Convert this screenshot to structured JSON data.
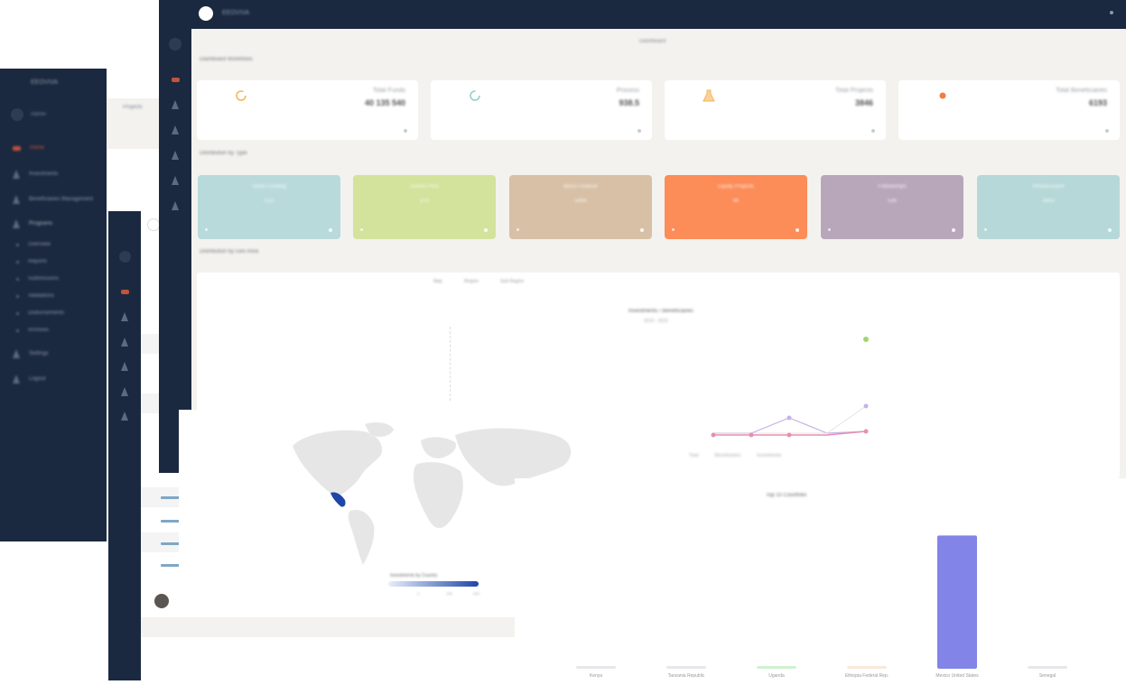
{
  "main": {
    "app_title": "EEOVIVA",
    "page_title": "Dashboard",
    "section_label": "Dashboard Workflows",
    "stats": [
      {
        "label": "Total Funds",
        "value": "40 135 540",
        "color": "#f5b35a"
      },
      {
        "label": "Process",
        "value": "938.5",
        "color": "#8ed0c5"
      },
      {
        "label": "Total Projects",
        "value": "3846",
        "color": "#f5b35a"
      },
      {
        "label": "Total Beneficiaries",
        "value": "6193",
        "color": "#f07d44"
      }
    ],
    "type_section_label": "Distribution by Type",
    "types": [
      {
        "label": "Seed Funding",
        "value": "1111",
        "color": "#b9dadb"
      },
      {
        "label": "Grants Plus",
        "value": "878",
        "color": "#d3e39c"
      },
      {
        "label": "Micro Finance",
        "value": "5494",
        "color": "#d7c0a6"
      },
      {
        "label": "Equity Projects",
        "value": "96",
        "color": "#fc8c58"
      },
      {
        "label": "Fellowships",
        "value": "536",
        "color": "#b8a7ba"
      },
      {
        "label": "Infrastructure",
        "value": "3663",
        "color": "#b6d8d8"
      }
    ],
    "geo_section_label": "Distribution by Geo Area",
    "chart_tabs": [
      "Map",
      "Region",
      "Sub Region"
    ]
  },
  "back_window": {
    "app_title": "EEOVIVA",
    "user_label": "Admin",
    "breadcrumb": "Projects",
    "sidebar_items": [
      {
        "label": "Home",
        "type": "icon"
      },
      {
        "label": "Investments",
        "type": "icon"
      },
      {
        "label": "Beneficiaries Management",
        "type": "icon"
      },
      {
        "label": "Programs",
        "type": "icon"
      }
    ],
    "sidebar_subitems": [
      "Overview",
      "Reports",
      "Submissions",
      "Validations",
      "Disbursements",
      "Archives"
    ],
    "sidebar_bottom": [
      {
        "label": "Settings"
      },
      {
        "label": "Logout"
      }
    ]
  },
  "line_chart": {
    "title": "Investments / Beneficiaries",
    "subtitle": "2019 - 2023",
    "legend": [
      "Total",
      "Beneficiaries",
      "Investments"
    ],
    "series_colors": [
      "#9fd66f",
      "#c6b3e6",
      "#e68fb0"
    ]
  },
  "map_chart": {
    "legend_title": "Investments by Country",
    "legend_ticks": [
      "0",
      "100",
      "200"
    ],
    "scale_colors": [
      "#e8eefa",
      "#1e46a8"
    ]
  },
  "chart_data": {
    "type": "bar",
    "title": "Top 10 Countries",
    "categories": [
      "Kenya",
      "Tanzania Republic",
      "Uganda",
      "Ethiopia Federal Rep.",
      "Mexico United States",
      "Senegal"
    ],
    "values": [
      0,
      0,
      0,
      0,
      100,
      0
    ],
    "bar_colors": [
      "#cfcfd8",
      "#cfcfd8",
      "#9ee69e",
      "#f4d3b5",
      "#8384e8",
      "#cfcfd8"
    ],
    "ylim": [
      0,
      105
    ],
    "grid": false,
    "legend": "none"
  }
}
